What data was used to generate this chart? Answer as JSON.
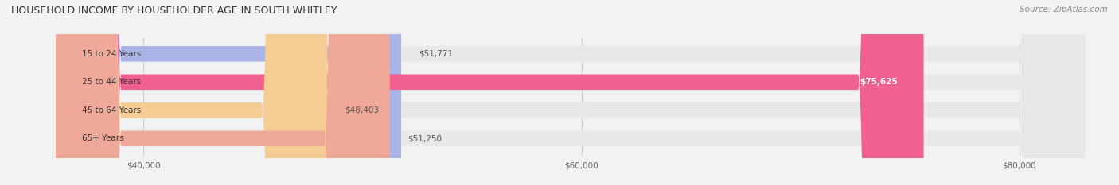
{
  "title": "HOUSEHOLD INCOME BY HOUSEHOLDER AGE IN SOUTH WHITLEY",
  "source": "Source: ZipAtlas.com",
  "categories": [
    "15 to 24 Years",
    "25 to 44 Years",
    "45 to 64 Years",
    "65+ Years"
  ],
  "values": [
    51771,
    75625,
    48403,
    51250
  ],
  "bar_colors": [
    "#aab4e8",
    "#f06090",
    "#f5cc94",
    "#f0a898"
  ],
  "bar_edge_colors": [
    "#aab4e8",
    "#f06090",
    "#f5cc94",
    "#f0a898"
  ],
  "label_colors": [
    "#555555",
    "#ffffff",
    "#555555",
    "#555555"
  ],
  "value_labels": [
    "$51,771",
    "$75,625",
    "$48,403",
    "$51,250"
  ],
  "xmin": 36000,
  "xmax": 83000,
  "xticks": [
    40000,
    60000,
    80000
  ],
  "xtick_labels": [
    "$40,000",
    "$60,000",
    "$80,000"
  ],
  "background_color": "#f2f2f2",
  "bar_background_color": "#e8e8e8",
  "bar_height": 0.55,
  "bar_gap": 0.45
}
